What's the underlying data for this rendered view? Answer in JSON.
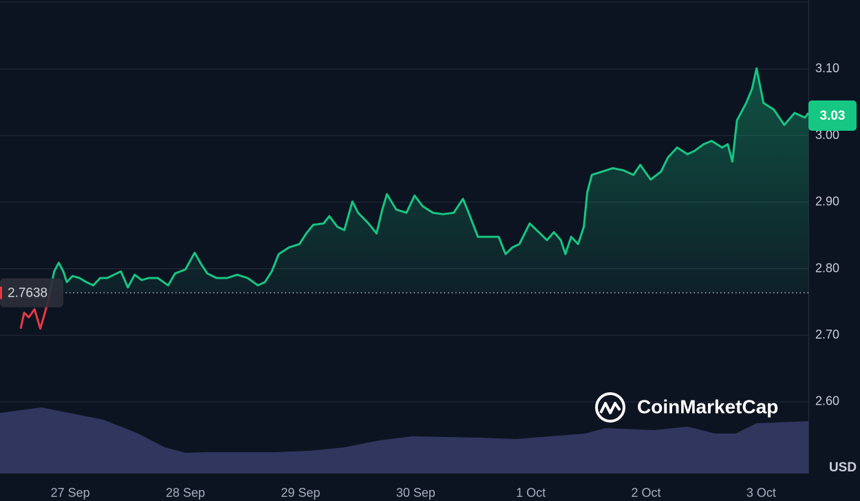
{
  "chart_data": {
    "type": "line",
    "line_color_up": "#16c784",
    "line_color_down": "#ea3943",
    "volume_color": "#30365e",
    "background": "#0d1421",
    "grid": true,
    "baseline": 2.7638,
    "current_price": 3.03,
    "currency_label": "USD",
    "watermark": "CoinMarketCap",
    "xlim": [
      -0.61,
      6.41
    ],
    "ylim": [
      2.4925,
      3.1995
    ],
    "xticks": [
      {
        "value": 0,
        "label": "27 Sep"
      },
      {
        "value": 1,
        "label": "28 Sep"
      },
      {
        "value": 2,
        "label": "29 Sep"
      },
      {
        "value": 3,
        "label": "30 Sep"
      },
      {
        "value": 4,
        "label": "1 Oct"
      },
      {
        "value": 5,
        "label": "2 Oct"
      },
      {
        "value": 6,
        "label": "3 Oct"
      }
    ],
    "yticks": [
      {
        "value": 2.6,
        "label": "2.60"
      },
      {
        "value": 2.7,
        "label": "2.70"
      },
      {
        "value": 2.8,
        "label": "2.80"
      },
      {
        "value": 2.9,
        "label": "2.90"
      },
      {
        "value": 3.0,
        "label": "3.00"
      },
      {
        "value": 3.1,
        "label": "3.10"
      }
    ],
    "x": [
      -0.43,
      -0.4,
      -0.36,
      -0.31,
      -0.26,
      -0.22,
      -0.18,
      -0.14,
      -0.1,
      -0.06,
      -0.03,
      0.02,
      0.08,
      0.14,
      0.2,
      0.26,
      0.32,
      0.38,
      0.44,
      0.5,
      0.56,
      0.62,
      0.68,
      0.76,
      0.85,
      0.91,
      1.0,
      1.08,
      1.14,
      1.19,
      1.27,
      1.36,
      1.45,
      1.54,
      1.63,
      1.69,
      1.75,
      1.81,
      1.9,
      1.99,
      2.05,
      2.11,
      2.2,
      2.25,
      2.32,
      2.38,
      2.45,
      2.5,
      2.59,
      2.66,
      2.71,
      2.75,
      2.83,
      2.92,
      2.99,
      3.06,
      3.15,
      3.24,
      3.33,
      3.41,
      3.46,
      3.54,
      3.63,
      3.72,
      3.78,
      3.84,
      3.9,
      3.99,
      4.08,
      4.14,
      4.2,
      4.26,
      4.3,
      4.35,
      4.41,
      4.46,
      4.49,
      4.53,
      4.62,
      4.71,
      4.8,
      4.89,
      4.95,
      5.04,
      5.13,
      5.19,
      5.27,
      5.36,
      5.42,
      5.5,
      5.57,
      5.66,
      5.71,
      5.75,
      5.79,
      5.87,
      5.92,
      5.96,
      6.02,
      6.11,
      6.2,
      6.29,
      6.38,
      6.41
    ],
    "values": [
      2.71,
      2.734,
      2.727,
      2.739,
      2.71,
      2.734,
      2.76,
      2.796,
      2.809,
      2.796,
      2.78,
      2.789,
      2.786,
      2.78,
      2.775,
      2.786,
      2.786,
      2.791,
      2.796,
      2.772,
      2.791,
      2.783,
      2.786,
      2.786,
      2.775,
      2.793,
      2.799,
      2.824,
      2.806,
      2.793,
      2.786,
      2.786,
      2.791,
      2.786,
      2.775,
      2.78,
      2.796,
      2.822,
      2.832,
      2.837,
      2.853,
      2.866,
      2.868,
      2.879,
      2.863,
      2.858,
      2.901,
      2.884,
      2.868,
      2.853,
      2.889,
      2.912,
      2.889,
      2.884,
      2.91,
      2.894,
      2.884,
      2.882,
      2.884,
      2.905,
      2.884,
      2.848,
      2.848,
      2.848,
      2.822,
      2.832,
      2.837,
      2.868,
      2.853,
      2.843,
      2.855,
      2.843,
      2.822,
      2.848,
      2.837,
      2.863,
      2.915,
      2.941,
      2.946,
      2.951,
      2.948,
      2.941,
      2.956,
      2.934,
      2.946,
      2.967,
      2.982,
      2.972,
      2.977,
      2.987,
      2.992,
      2.982,
      2.987,
      2.961,
      3.023,
      3.049,
      3.07,
      3.101,
      3.049,
      3.039,
      3.016,
      3.034,
      3.027,
      3.034
    ],
    "volume": {
      "vlim": [
        0,
        100
      ],
      "x": [
        -0.61,
        -0.25,
        -0.01,
        0.29,
        0.59,
        0.82,
        1.0,
        1.18,
        1.78,
        2.08,
        2.38,
        2.68,
        2.97,
        3.57,
        3.87,
        4.47,
        4.65,
        5.07,
        5.36,
        5.6,
        5.78,
        5.96,
        6.41
      ],
      "values": [
        88,
        96,
        88,
        78,
        58,
        38,
        30,
        31,
        31,
        33,
        38,
        48,
        54,
        52,
        50,
        58,
        66,
        63,
        68,
        58,
        58,
        73,
        76
      ]
    }
  }
}
